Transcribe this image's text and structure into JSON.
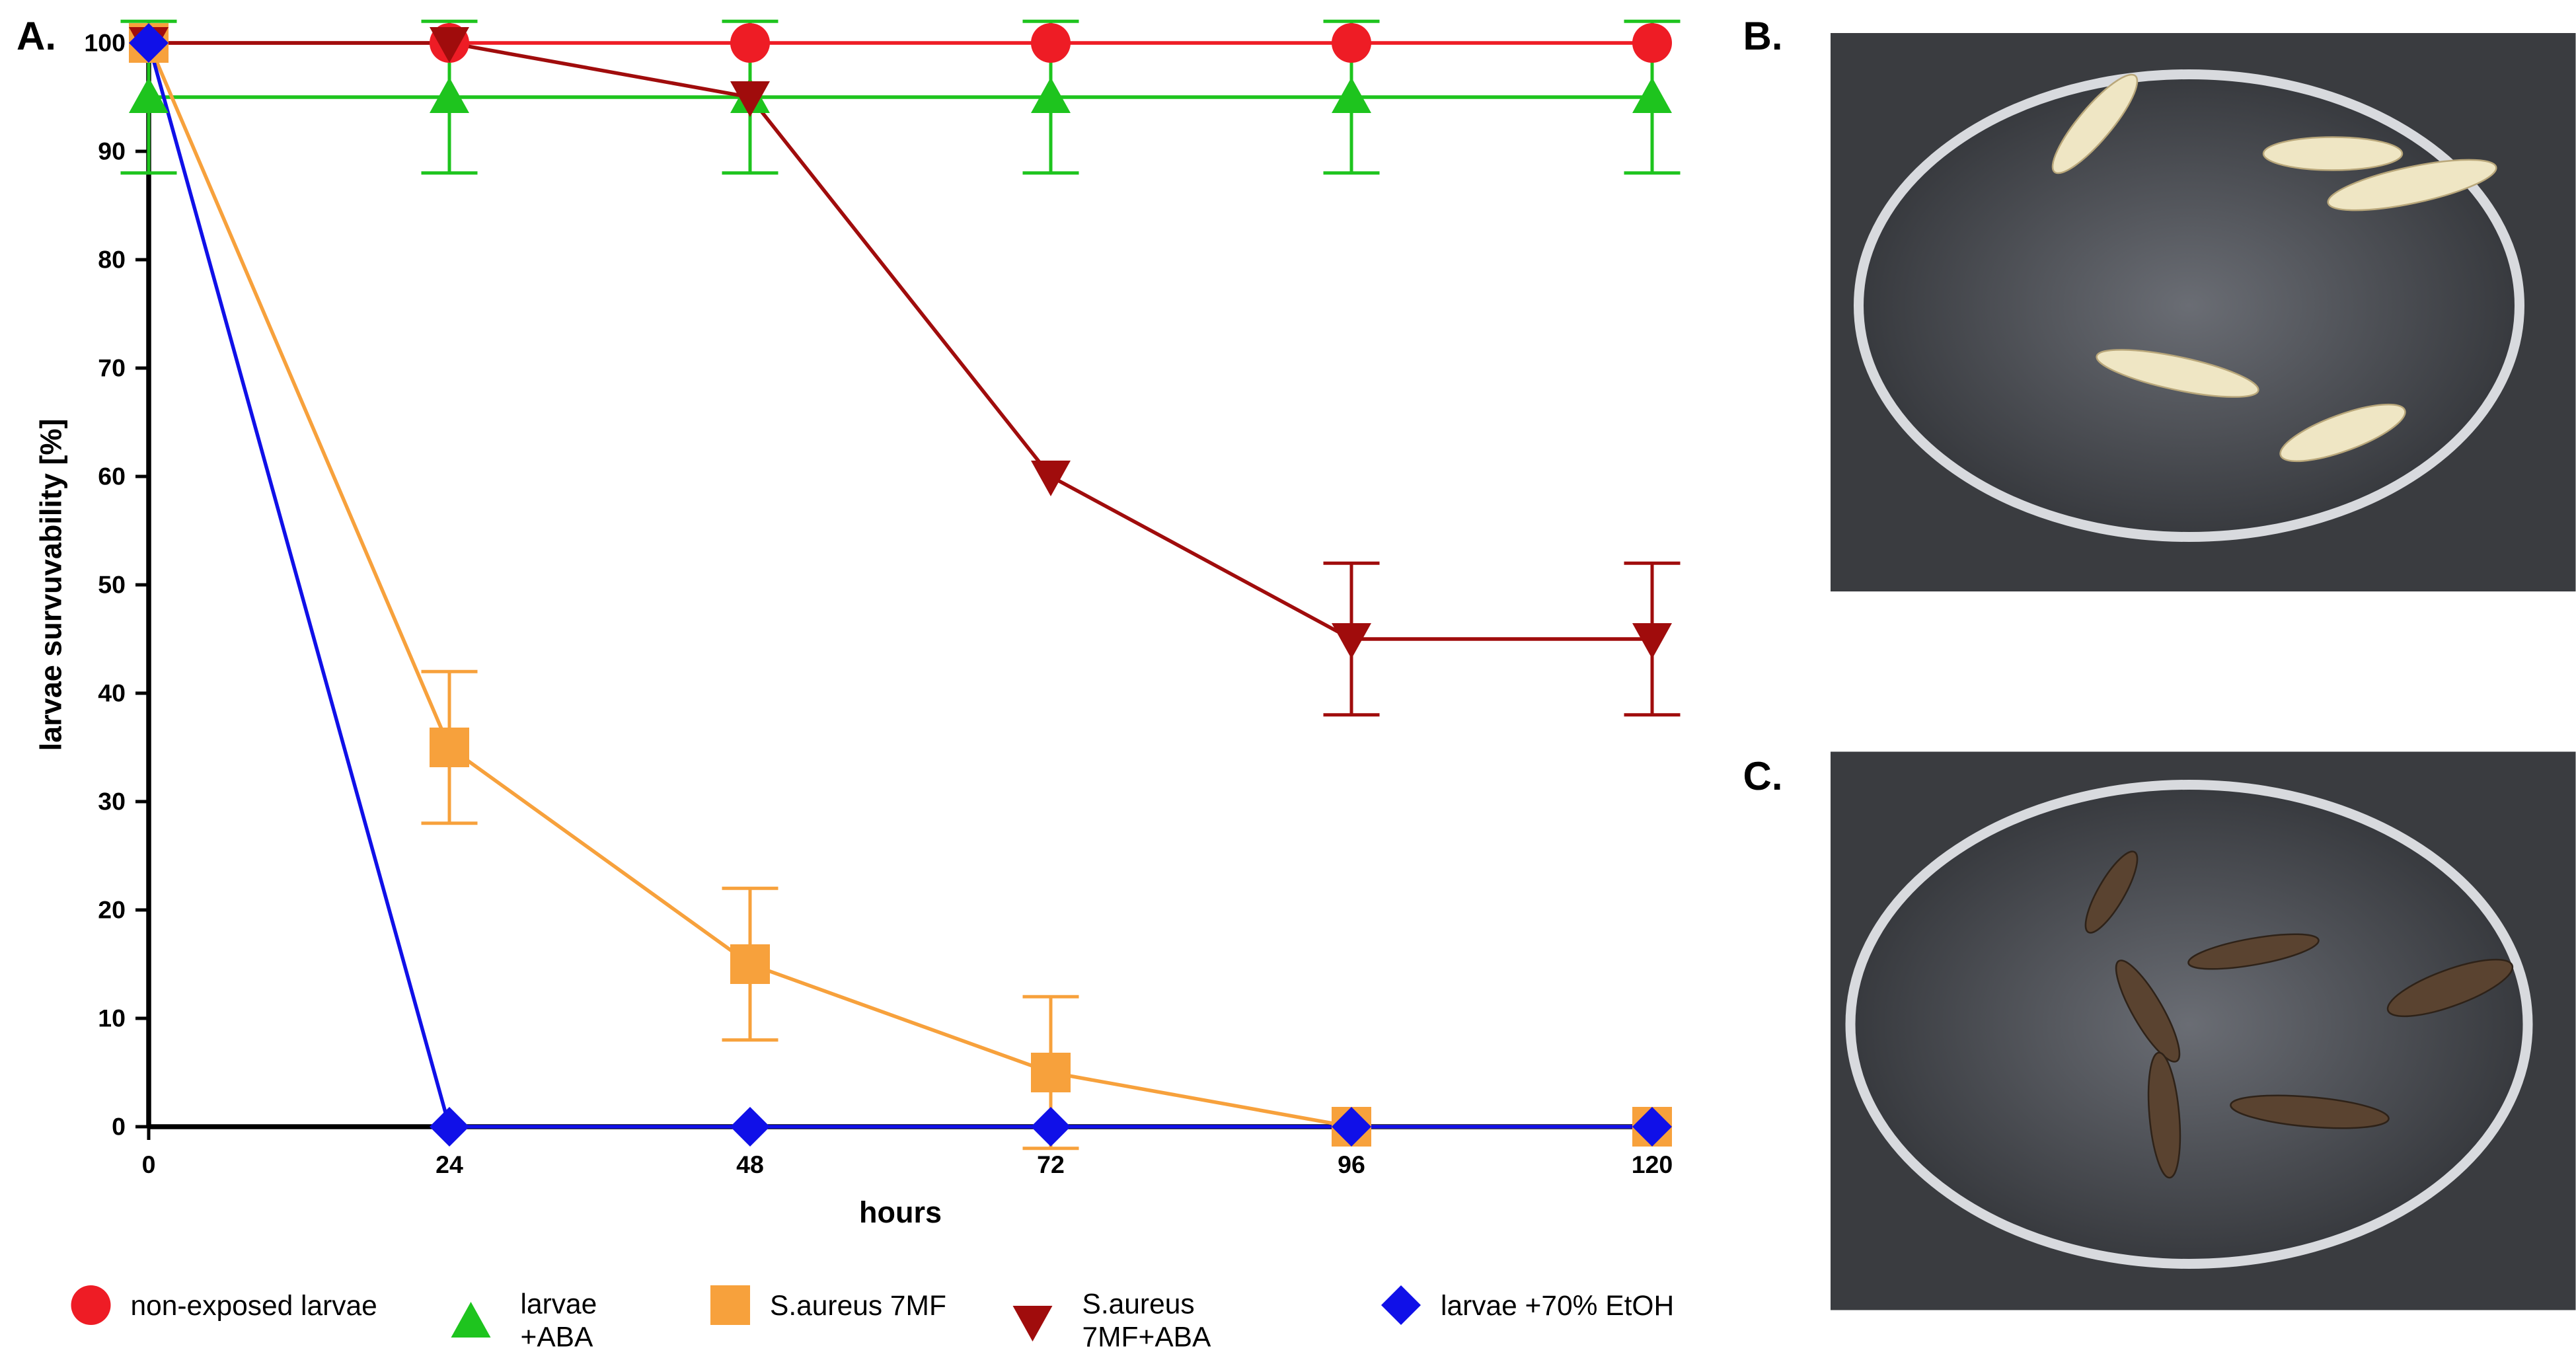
{
  "chart_data": {
    "type": "line",
    "panel_labels": [
      "A.",
      "B.",
      "C."
    ],
    "xlabel": "hours",
    "ylabel": "larvae survuvability [%]",
    "x": [
      0,
      24,
      48,
      72,
      96,
      120
    ],
    "xlim": [
      0,
      120
    ],
    "xticks": [
      0,
      24,
      48,
      72,
      96,
      120
    ],
    "ylim": [
      0,
      100
    ],
    "yticks": [
      0,
      10,
      20,
      30,
      40,
      50,
      60,
      70,
      80,
      90,
      100
    ],
    "series": [
      {
        "name": "non-exposed larvae",
        "color": "#ee1c25",
        "marker": "circle",
        "values": [
          100,
          100,
          100,
          100,
          100,
          100
        ],
        "errors": [
          0,
          0,
          0,
          0,
          0,
          0
        ]
      },
      {
        "name": "larvae +ABA",
        "color": "#1ec41e",
        "marker": "triangle-up",
        "values": [
          95,
          95,
          95,
          95,
          95,
          95
        ],
        "errors": [
          7,
          7,
          7,
          7,
          7,
          7
        ]
      },
      {
        "name": "S.aureus 7MF",
        "color": "#f7a13c",
        "marker": "square",
        "values": [
          100,
          35,
          15,
          5,
          0,
          0
        ],
        "errors": [
          0,
          7,
          7,
          7,
          0,
          0
        ]
      },
      {
        "name": "S.aureus 7MF+ABA",
        "color": "#a00c0c",
        "marker": "triangle-down",
        "values": [
          100,
          100,
          95,
          60,
          45,
          45
        ],
        "errors": [
          0,
          0,
          0,
          0,
          7,
          7
        ]
      },
      {
        "name": "larvae +70% EtOH",
        "color": "#1010e8",
        "marker": "diamond",
        "values": [
          100,
          0,
          0,
          0,
          0,
          0
        ],
        "errors": [
          0,
          0,
          0,
          0,
          0,
          0
        ]
      }
    ]
  }
}
